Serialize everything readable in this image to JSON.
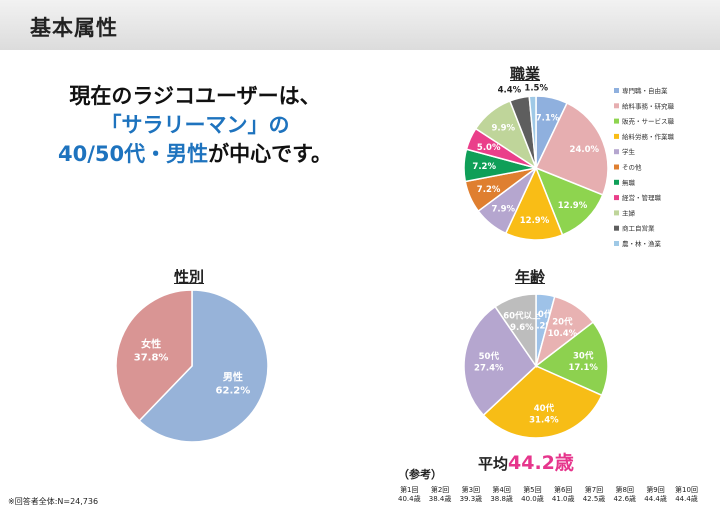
{
  "header": {
    "title": "基本属性"
  },
  "headline": {
    "line1": "現在のラジコユーザーは、",
    "line2": "「サラリーマン」の",
    "line3_blue": "40/50代・男性",
    "line3_dark": "が中心です。"
  },
  "note": "※回答者全体:N=24,736",
  "average": {
    "label": "平均",
    "value": "44.2歳"
  },
  "reference": {
    "label": "（参考）",
    "rounds": [
      "第1回",
      "第2回",
      "第3回",
      "第4回",
      "第5回",
      "第6回",
      "第7回",
      "第8回",
      "第9回",
      "第10回"
    ],
    "ages": [
      "40.4歳",
      "38.4歳",
      "39.3歳",
      "38.8歳",
      "40.0歳",
      "41.0歳",
      "42.5歳",
      "42.6歳",
      "44.4歳",
      "44.4歳"
    ]
  },
  "chart_data": [
    {
      "type": "pie",
      "title": "性別",
      "labels": [
        "男性",
        "女性"
      ],
      "values": [
        62.2,
        37.8
      ],
      "display": [
        "62.2%",
        "37.8%"
      ],
      "colors": [
        "#97b3d9",
        "#d99594"
      ],
      "legend": "none"
    },
    {
      "type": "pie",
      "title": "職業",
      "labels": [
        "専門職・自由業",
        "給料事務・研究職",
        "販売・サービス職",
        "給料労務・作業職",
        "学生",
        "その他",
        "無職",
        "経営・管理職",
        "主婦",
        "商工自営業",
        "農・林・漁業"
      ],
      "values": [
        7.1,
        24.0,
        12.9,
        12.9,
        7.9,
        7.2,
        7.2,
        5.0,
        9.9,
        4.4,
        1.5
      ],
      "display": [
        "7.1%",
        "24.0%",
        "12.9%",
        "12.9%",
        "7.9%",
        "7.2%",
        "7.2%",
        "5.0%",
        "9.9%",
        "4.4%",
        "1.5%"
      ],
      "colors": [
        "#8fb0de",
        "#e6aeb0",
        "#8ed44f",
        "#f9bd16",
        "#b5a6cf",
        "#df7f30",
        "#0f9f58",
        "#ea3f8a",
        "#bfd59a",
        "#5e5e5e",
        "#9fc9e6"
      ],
      "legend": "right"
    },
    {
      "type": "pie",
      "title": "年齢",
      "labels": [
        "10代",
        "20代",
        "30代",
        "40代",
        "50代",
        "60代以上"
      ],
      "values": [
        4.2,
        10.4,
        17.1,
        31.4,
        27.4,
        9.6
      ],
      "display": [
        "4.2%",
        "10.4%",
        "17.1%",
        "31.4%",
        "27.4%",
        "9.6%"
      ],
      "colors": [
        "#9ec2e8",
        "#e8b2b2",
        "#8dd14f",
        "#f7bd16",
        "#b5a6cf",
        "#bdbdbd"
      ],
      "legend": "none"
    }
  ]
}
